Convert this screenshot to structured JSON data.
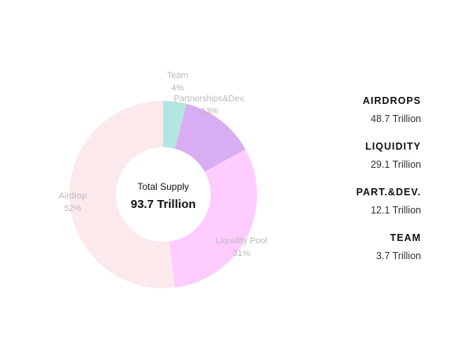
{
  "chart_data": {
    "type": "pie",
    "variant": "donut",
    "center": {
      "caption": "Total Supply",
      "value": "93.7 Trillion"
    },
    "series": [
      {
        "name": "Team",
        "value": 4,
        "label": "4%",
        "color": "#b3e6e1"
      },
      {
        "name": "Partnerships&Dev.",
        "value": 13,
        "label": "13%",
        "color": "#d9adf4"
      },
      {
        "name": "Liquidity Pool",
        "value": 31,
        "label": "31%",
        "color": "#ffccff"
      },
      {
        "name": "Airdrop",
        "value": 52,
        "label": "52%",
        "color": "#fce9ec"
      }
    ]
  },
  "summary": {
    "items": [
      {
        "title": "AIRDROPS",
        "value": "48.7 Trillion"
      },
      {
        "title": "LIQUIDITY",
        "value": "29.1 Trillion"
      },
      {
        "title": "PART.&DEV.",
        "value": "12.1 Trillion"
      },
      {
        "title": "TEAM",
        "value": "3.7 Trillion"
      }
    ]
  }
}
